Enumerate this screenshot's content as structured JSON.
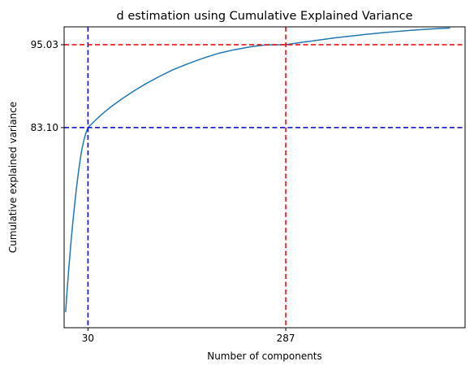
{
  "chart_data": {
    "type": "line",
    "title": "d estimation using Cumulative Explained Variance",
    "xlabel": "Number of components",
    "ylabel": "Cumulative explained variance",
    "xlim": [
      -1,
      520
    ],
    "ylim": [
      54.3,
      97.6
    ],
    "x_ticks": [
      {
        "value": 30,
        "label": "30"
      },
      {
        "value": 287,
        "label": "287"
      }
    ],
    "y_ticks": [
      {
        "value": 83.1,
        "label": "83.10"
      },
      {
        "value": 95.03,
        "label": "95.03"
      }
    ],
    "series": [
      {
        "color": "#1f77b4",
        "x": [
          1,
          2,
          3,
          4,
          6,
          8,
          10,
          12,
          15,
          18,
          21,
          24,
          27,
          30,
          40,
          50,
          60,
          75,
          90,
          105,
          120,
          140,
          160,
          180,
          200,
          220,
          240,
          260,
          287,
          310,
          330,
          350,
          370,
          390,
          410,
          430,
          450,
          470,
          490,
          500
        ],
        "y": [
          56.6,
          58.2,
          59.8,
          61.3,
          64.1,
          66.7,
          69.1,
          71.3,
          74.4,
          77.0,
          79.3,
          81.0,
          82.2,
          83.1,
          84.2,
          85.2,
          86.1,
          87.3,
          88.4,
          89.4,
          90.3,
          91.4,
          92.3,
          93.1,
          93.8,
          94.3,
          94.7,
          95.0,
          95.03,
          95.4,
          95.7,
          96.0,
          96.25,
          96.5,
          96.72,
          96.92,
          97.1,
          97.25,
          97.38,
          97.43
        ]
      }
    ],
    "reference_lines": [
      {
        "orientation": "vertical",
        "value": 30,
        "color": "#0000cc",
        "style": "dashed"
      },
      {
        "orientation": "horizontal",
        "value": 83.1,
        "color": "#0000cc",
        "style": "dashed"
      },
      {
        "orientation": "vertical",
        "value": 287,
        "color": "#ee0000",
        "style": "dashed"
      },
      {
        "orientation": "horizontal",
        "value": 95.03,
        "color": "#ee0000",
        "style": "dashed"
      }
    ],
    "grid": false,
    "legend": false
  }
}
